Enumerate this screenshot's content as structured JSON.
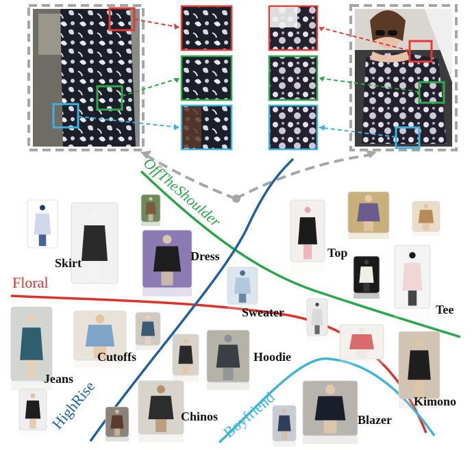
{
  "colors": {
    "floral": "#e0302a",
    "off_the_shoulder": "#29a84a",
    "high_rise": "#1f5fa8",
    "boyfriend": "#3bb6d8",
    "patch_red": "#e53935",
    "patch_green": "#2ea84a",
    "patch_cyan": "#3bb2e0",
    "dashed_frame": "#a6a6a6"
  },
  "attributes": [
    {
      "key": "floral",
      "label": "Floral"
    },
    {
      "key": "off_the_shoulder",
      "label": "OffTheShoulder"
    },
    {
      "key": "high_rise",
      "label": "HighRise"
    },
    {
      "key": "boyfriend",
      "label": "Boyfriend"
    }
  ],
  "categories": [
    "Skirt",
    "Dress",
    "Top",
    "Tee",
    "Sweater",
    "Jeans",
    "Cutoffs",
    "Hoodie",
    "Kimono",
    "Chinos",
    "Blazer"
  ],
  "photos": [
    "white-floral-dress",
    "woman-white-top-floral-skirt",
    "small-figure-top-center",
    "woman-purple-background-dress",
    "woman-floral-off-shoulder-top",
    "woman-floral-top-yellow-bus",
    "small-figure-top-right",
    "woman-dark-dress",
    "woman-white-floral-off-shoulder-top",
    "sweater-on-hanger",
    "man-white-sweater",
    "woman-high-rise-jeans",
    "denim-cutoffs",
    "woman-street-jeans",
    "woman-wide-pants",
    "woman-hoodie",
    "floral-sweater-detail",
    "woman-floral-kimono",
    "woman-black-shorts",
    "man-scarf",
    "man-chinos",
    "woman-jeans-jacket",
    "woman-black-blazer-dark",
    "woman-blazer-grey-background"
  ],
  "icons": [
    "dashed-link-arrow",
    "patch-link-arrow",
    "hub-dot"
  ]
}
